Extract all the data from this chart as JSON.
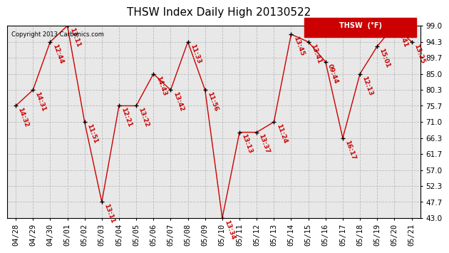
{
  "title": "THSW Index Daily High 20130522",
  "copyright": "Copyright 2013 Carbonics.com",
  "legend_label": "THSW  (°F)",
  "ylim": [
    43.0,
    99.0
  ],
  "yticks": [
    43.0,
    47.7,
    52.3,
    57.0,
    61.7,
    66.3,
    71.0,
    75.7,
    80.3,
    85.0,
    89.7,
    94.3,
    99.0
  ],
  "dates": [
    "04/28",
    "04/29",
    "04/30",
    "05/01",
    "05/02",
    "05/03",
    "05/04",
    "05/05",
    "05/06",
    "05/07",
    "05/08",
    "05/09",
    "05/10",
    "05/11",
    "05/12",
    "05/13",
    "05/14",
    "05/15",
    "05/16",
    "05/17",
    "05/18",
    "05/19",
    "05/20",
    "05/21"
  ],
  "values": [
    75.7,
    80.3,
    94.3,
    99.0,
    71.0,
    47.7,
    75.7,
    75.7,
    85.0,
    80.3,
    94.3,
    80.3,
    43.0,
    68.0,
    68.0,
    71.0,
    96.5,
    94.3,
    88.5,
    66.3,
    85.0,
    93.0,
    99.0,
    94.3
  ],
  "labels": [
    "14:32",
    "14:31",
    "12:44",
    "13:11",
    "11:51",
    "13:11",
    "12:21",
    "13:22",
    "14:43",
    "13:42",
    "11:33",
    "11:56",
    "13:34",
    "13:13",
    "13:37",
    "11:24",
    "13:45",
    "13:41",
    "09:44",
    "16:17",
    "12:13",
    "15:01",
    "11:41",
    "13:25"
  ],
  "line_color": "#cc0000",
  "marker_color": "#000000",
  "label_color": "#cc0000",
  "bg_color": "#ffffff",
  "plot_bg_color": "#e8e8e8",
  "grid_color": "#bbbbbb",
  "title_fontsize": 11,
  "label_fontsize": 6.5,
  "tick_fontsize": 7.5,
  "legend_bg": "#cc0000",
  "legend_text_color": "#ffffff"
}
